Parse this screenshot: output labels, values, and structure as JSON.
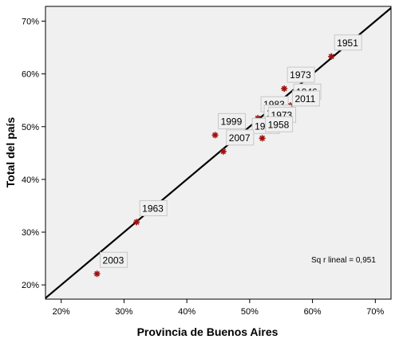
{
  "chart_data": {
    "type": "scatter",
    "xlabel": "Provincia de Buenos Aires",
    "ylabel": "Total del país",
    "xlim": [
      17.5,
      72.5
    ],
    "ylim": [
      17.3,
      72.8
    ],
    "x_ticks": [
      20,
      30,
      40,
      50,
      60,
      70
    ],
    "y_ticks": [
      20,
      30,
      40,
      50,
      60,
      70
    ],
    "tick_suffix": "%",
    "grid": false,
    "points": [
      {
        "label": "1951",
        "x": 63.0,
        "y": 63.3
      },
      {
        "label": "1973",
        "x": 55.5,
        "y": 57.2
      },
      {
        "label": "1946",
        "x": 56.5,
        "y": 54.0
      },
      {
        "label": "1983",
        "x": 51.3,
        "y": 51.6
      },
      {
        "label": "2011",
        "x": 56.3,
        "y": 52.7
      },
      {
        "label": "1995",
        "x": 51.8,
        "y": 50.0
      },
      {
        "label": "1973",
        "x": 52.5,
        "y": 49.6
      },
      {
        "label": "1999",
        "x": 44.5,
        "y": 48.4
      },
      {
        "label": "1989",
        "x": 49.9,
        "y": 47.5
      },
      {
        "label": "1958",
        "x": 52.0,
        "y": 47.8
      },
      {
        "label": "2007",
        "x": 45.8,
        "y": 45.3
      },
      {
        "label": "1963",
        "x": 32.0,
        "y": 31.9
      },
      {
        "label": "2003",
        "x": 25.7,
        "y": 22.1
      }
    ],
    "fit_line": {
      "slope": 1.0,
      "intercept": 0.0
    },
    "annotation": "Sq r lineal = 0,951",
    "colors": {
      "plot_bg": "#f0f0f0",
      "marker": "#a01010",
      "line": "#000000"
    }
  }
}
